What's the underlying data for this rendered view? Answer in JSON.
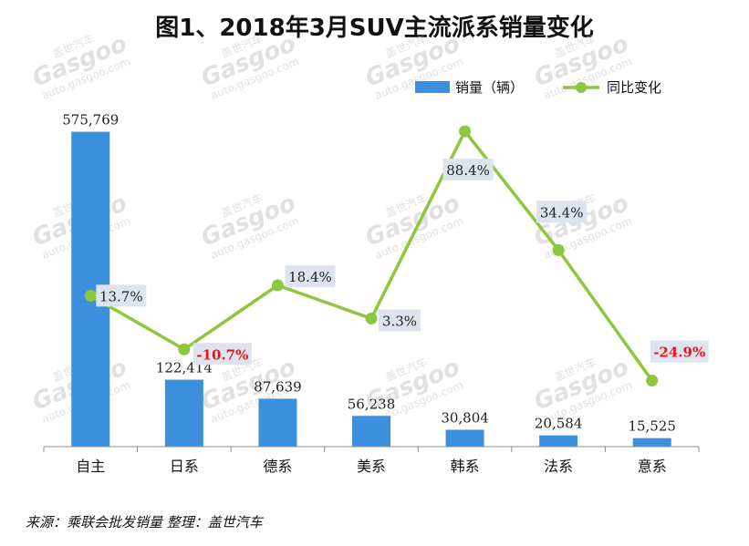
{
  "title": "图1、2018年3月SUV主流派系销量变化",
  "source_note": "来源：乘联会批发销量   整理：盖世汽车",
  "watermark": {
    "brand_cn": "盖世汽车",
    "logo": "Gasgoo",
    "url": "auto.gasgoo.com"
  },
  "colors": {
    "bar": "#3b8fdc",
    "line": "#8dc63f",
    "negative_label": "#e8141e",
    "label_box": "#dde4ee",
    "axis": "#8c8c8c"
  },
  "chart_data": {
    "type": "bar",
    "title": "图1、2018年3月SUV主流派系销量变化",
    "categories": [
      "自主",
      "日系",
      "德系",
      "美系",
      "韩系",
      "法系",
      "意系"
    ],
    "series": [
      {
        "name": "销量（辆）",
        "type": "bar",
        "axis": "left",
        "values": [
          575769,
          122414,
          87639,
          56238,
          30804,
          20584,
          15525
        ],
        "labels": [
          "575,769",
          "122,414",
          "87,639",
          "56,238",
          "30,804",
          "20,584",
          "15,525"
        ]
      },
      {
        "name": "同比变化",
        "type": "line",
        "axis": "right",
        "values": [
          13.7,
          -10.7,
          18.4,
          3.3,
          88.4,
          34.4,
          -24.9
        ],
        "labels": [
          "13.7%",
          "-10.7%",
          "18.4%",
          "3.3%",
          "88.4%",
          "34.4%",
          "-24.9%"
        ]
      }
    ],
    "ylim_left": [
      0,
      600000
    ],
    "ylim_right": [
      -40,
      100
    ],
    "legend": "top-right",
    "grid": false
  }
}
